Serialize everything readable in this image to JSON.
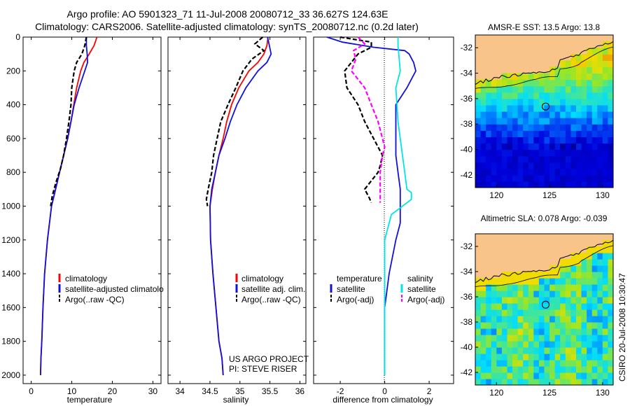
{
  "title": {
    "line1": "Argo profile: AO 5901323_71 11-Jul-2008 20080712_33 36.627S 124.63E",
    "line2": "Climatology: CARS2006. Satellite-adjusted climatology: synTS_20080712.nc (0.2d later)"
  },
  "side_label": "CSIRO 20-Jul-2008 10:30:47",
  "credit": {
    "line1": "US ARGO PROJECT",
    "line2": "PI: STEVE RISER"
  },
  "colors": {
    "climatology": "#ff0000",
    "satellite": "#1010dd",
    "argo": "#000000",
    "sal_satellite": "#00e5e5",
    "sal_argo": "#ff00ff",
    "land": "#f8c48a"
  },
  "chart_data": [
    {
      "type": "line",
      "panel": "temperature",
      "xlabel": "temperature",
      "ylabel": "",
      "xlim": [
        -2,
        32
      ],
      "ylim": [
        2050,
        0
      ],
      "xticks": [
        0,
        10,
        20,
        30
      ],
      "yticks": [
        0,
        200,
        400,
        600,
        800,
        1000,
        1200,
        1400,
        1600,
        1800,
        2000
      ],
      "legend": {
        "placement": "lower-right",
        "entries": [
          "climatology",
          "satellite-adjusted climatolo",
          "Argo(..raw -QC)"
        ]
      },
      "series": [
        {
          "name": "climatology",
          "color": "climatology",
          "dash": false,
          "x": [
            16.2,
            15.5,
            14.3,
            13.0,
            12.2,
            11.2,
            10.5,
            9.8,
            9.0,
            8.0,
            7.0,
            6.0,
            5.0,
            4.0,
            3.3,
            2.9,
            2.6,
            2.4,
            2.3
          ],
          "y": [
            0,
            50,
            100,
            150,
            200,
            300,
            400,
            500,
            600,
            700,
            800,
            900,
            1000,
            1200,
            1400,
            1600,
            1800,
            1900,
            2000
          ]
        },
        {
          "name": "satellite-adjusted climatology",
          "color": "satellite",
          "dash": false,
          "x": [
            13.6,
            13.6,
            13.8,
            13.9,
            13.2,
            11.8,
            10.6,
            9.8,
            9.0,
            8.0,
            7.0,
            6.0,
            5.0,
            4.0,
            3.3,
            2.9,
            2.6,
            2.4,
            2.3
          ],
          "y": [
            0,
            50,
            100,
            150,
            200,
            300,
            400,
            500,
            600,
            700,
            800,
            900,
            1000,
            1200,
            1400,
            1600,
            1800,
            1900,
            2000
          ]
        },
        {
          "name": "Argo(..raw -QC)",
          "color": "argo",
          "dash": true,
          "x": [
            13.6,
            13.2,
            12.5,
            11.2,
            10.6,
            10.0,
            9.8,
            9.3,
            8.7,
            8.0,
            7.2,
            6.1,
            5.2,
            4.8
          ],
          "y": [
            0,
            50,
            100,
            150,
            200,
            300,
            400,
            500,
            600,
            700,
            780,
            860,
            940,
            1000
          ]
        }
      ]
    },
    {
      "type": "line",
      "panel": "salinity",
      "xlabel": "salinity",
      "ylabel": "",
      "xlim": [
        33.8,
        36.1
      ],
      "ylim": [
        2050,
        0
      ],
      "xticks": [
        34,
        34.5,
        35,
        35.5,
        36
      ],
      "legend": {
        "placement": "lower-right",
        "entries": [
          "climatology",
          "satellite adj. clim.",
          "Argo(..raw -QC)"
        ]
      },
      "series": [
        {
          "name": "climatology",
          "color": "climatology",
          "dash": false,
          "x": [
            35.47,
            35.45,
            35.4,
            35.3,
            35.15,
            34.98,
            34.86,
            34.78,
            34.72,
            34.65,
            34.59,
            34.54,
            34.5,
            34.51,
            34.55,
            34.6,
            34.65,
            34.7,
            34.72
          ],
          "y": [
            0,
            50,
            100,
            150,
            200,
            300,
            400,
            500,
            600,
            700,
            800,
            900,
            1000,
            1200,
            1400,
            1600,
            1800,
            1900,
            2000
          ]
        },
        {
          "name": "satellite adj. clim.",
          "color": "satellite",
          "dash": false,
          "x": [
            35.46,
            35.49,
            35.52,
            35.45,
            35.3,
            35.1,
            34.95,
            34.84,
            34.75,
            34.65,
            34.59,
            34.53,
            34.5,
            34.51,
            34.55,
            34.6,
            34.65,
            34.7,
            34.72
          ],
          "y": [
            0,
            50,
            100,
            150,
            200,
            300,
            400,
            500,
            600,
            700,
            800,
            900,
            1000,
            1200,
            1400,
            1600,
            1800,
            1900,
            2000
          ]
        },
        {
          "name": "Argo(..raw -QC)",
          "color": "argo",
          "dash": true,
          "x": [
            35.38,
            35.25,
            35.4,
            35.2,
            35.05,
            34.93,
            34.8,
            34.68,
            34.62,
            34.56,
            34.53,
            34.47,
            34.44,
            34.46
          ],
          "y": [
            0,
            40,
            80,
            130,
            200,
            300,
            400,
            500,
            600,
            700,
            800,
            900,
            960,
            1000
          ]
        }
      ]
    },
    {
      "type": "line",
      "panel": "difference",
      "xlabel": "difference from climatology",
      "ylabel": "",
      "xlim": [
        -3.2,
        3.1
      ],
      "ylim": [
        2050,
        0
      ],
      "xticks": [
        -2,
        0,
        2
      ],
      "legend": {
        "placement": "lower-center",
        "entries": [
          "temperature",
          "salinity",
          "satellite",
          "satellite",
          "Argo(-adj)",
          "Argo(-adj)"
        ]
      },
      "series": [
        {
          "name": "temperature satellite",
          "color": "satellite",
          "dash": false,
          "x": [
            -2.6,
            -1.9,
            -0.5,
            0.9,
            1.1,
            1.3,
            1.4,
            1.0,
            0.5,
            0.5,
            0.5,
            0.6,
            0.7,
            0.7,
            0.7,
            0.5,
            0.2,
            0.0,
            0.0,
            0.0
          ],
          "y": [
            0,
            30,
            60,
            80,
            100,
            150,
            200,
            300,
            400,
            600,
            700,
            800,
            900,
            1000,
            1100,
            1200,
            1400,
            1600,
            1800,
            2000
          ]
        },
        {
          "name": "salinity satellite",
          "color": "sal_satellite",
          "dash": false,
          "x": [
            0.6,
            0.6,
            0.7,
            0.5,
            0.6,
            0.7,
            0.8,
            0.9,
            1.0,
            1.2,
            1.2,
            0.3,
            0.0,
            0.0,
            0.0,
            0.0
          ],
          "y": [
            0,
            50,
            200,
            300,
            500,
            600,
            700,
            800,
            900,
            920,
            960,
            1050,
            1200,
            1500,
            1800,
            2000
          ]
        },
        {
          "name": "temperature Argo(-adj)",
          "color": "argo",
          "dash": true,
          "x": [
            -2.0,
            -0.6,
            -0.6,
            -1.2,
            -1.8,
            -1.7,
            -1.2,
            -0.9,
            -0.5,
            -0.3,
            -0.1,
            -0.2,
            -0.3,
            -0.6,
            -0.9,
            -0.7,
            -0.6
          ],
          "y": [
            0,
            30,
            60,
            100,
            200,
            300,
            400,
            500,
            600,
            650,
            700,
            760,
            800,
            850,
            900,
            950,
            980
          ]
        },
        {
          "name": "salinity Argo(-adj)",
          "color": "sal_argo",
          "dash": true,
          "x": [
            -1.2,
            -0.9,
            -1.4,
            -1.3,
            -1.5,
            -0.9,
            -0.6,
            -0.3,
            -0.1,
            0.0,
            -0.1,
            -0.2,
            -0.2,
            -0.2
          ],
          "y": [
            0,
            40,
            80,
            130,
            200,
            300,
            400,
            500,
            600,
            650,
            700,
            800,
            900,
            980
          ]
        }
      ]
    },
    {
      "type": "heatmap",
      "panel": "sst-map",
      "title": "AMSR-E SST: 13.5 Argo: 13.8",
      "xlim": [
        118,
        131
      ],
      "ylim": [
        -43,
        -31
      ],
      "xticks": [
        120,
        125,
        130
      ],
      "yticks": [
        -32,
        -34,
        -36,
        -38,
        -40,
        -42
      ],
      "marker": {
        "lon": 124.63,
        "lat": -36.627
      }
    },
    {
      "type": "heatmap",
      "panel": "sla-map",
      "title": "Altimetric SLA: 0.078 Argo: -0.039",
      "xlim": [
        118,
        131
      ],
      "ylim": [
        -43,
        -31
      ],
      "xticks": [
        120,
        125,
        130
      ],
      "yticks": [
        -32,
        -34,
        -36,
        -38,
        -40,
        -42
      ],
      "marker": {
        "lon": 124.63,
        "lat": -36.627
      }
    }
  ]
}
